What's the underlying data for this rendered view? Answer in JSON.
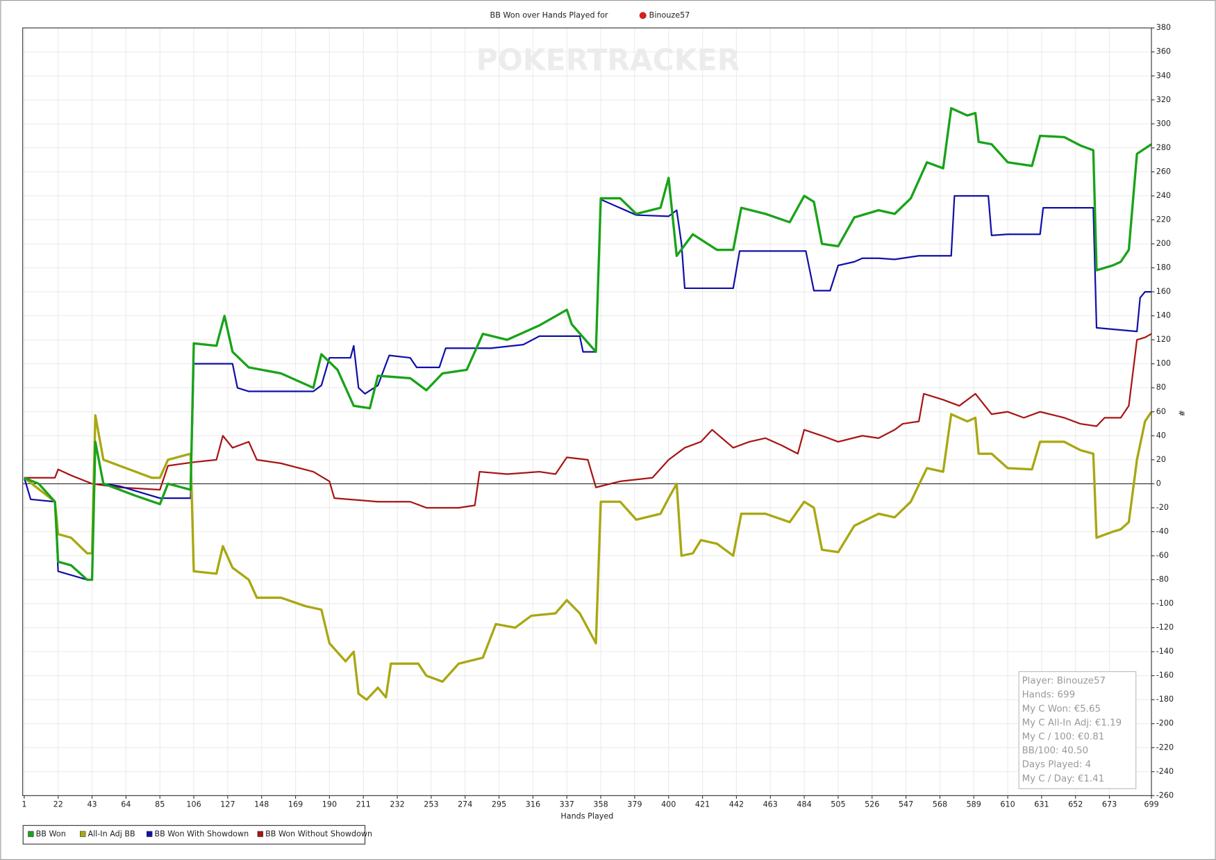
{
  "chart_data": {
    "type": "line",
    "title": "BB Won over Hands Played for",
    "player": "Binouze57",
    "watermark": "POKERTRACKER",
    "xlabel": "Hands Played",
    "ylabel": "#",
    "xlim": [
      1,
      699
    ],
    "ylim": [
      -260,
      380
    ],
    "xticks": [
      1,
      22,
      43,
      64,
      85,
      106,
      127,
      148,
      169,
      190,
      211,
      232,
      253,
      274,
      295,
      316,
      337,
      358,
      379,
      400,
      421,
      442,
      463,
      484,
      505,
      526,
      547,
      568,
      589,
      610,
      631,
      652,
      673,
      699
    ],
    "yticks": [
      -260,
      -240,
      -220,
      -200,
      -180,
      -160,
      -140,
      -120,
      -100,
      -80,
      -60,
      -40,
      -20,
      0,
      20,
      40,
      60,
      80,
      100,
      120,
      140,
      160,
      180,
      200,
      220,
      240,
      260,
      280,
      300,
      320,
      340,
      360,
      380
    ],
    "grid": true,
    "series": [
      {
        "name": "BB Won",
        "color": "#19a319",
        "x": [
          1,
          10,
          20,
          22,
          30,
          40,
          43,
          45,
          50,
          60,
          70,
          85,
          90,
          104,
          106,
          120,
          125,
          130,
          140,
          160,
          180,
          185,
          195,
          205,
          215,
          220,
          240,
          250,
          260,
          275,
          285,
          300,
          320,
          337,
          340,
          355,
          358,
          370,
          380,
          395,
          400,
          405,
          415,
          430,
          440,
          445,
          460,
          475,
          484,
          490,
          495,
          505,
          515,
          530,
          540,
          550,
          560,
          570,
          575,
          585,
          590,
          592,
          600,
          610,
          625,
          630,
          645,
          655,
          663,
          665,
          675,
          680,
          685,
          690,
          699
        ],
        "values": [
          5,
          0,
          -15,
          -65,
          -68,
          -80,
          -80,
          35,
          0,
          -5,
          -10,
          -17,
          0,
          -5,
          117,
          115,
          140,
          110,
          97,
          92,
          80,
          108,
          95,
          65,
          63,
          90,
          88,
          78,
          92,
          95,
          125,
          120,
          132,
          145,
          133,
          110,
          238,
          238,
          225,
          230,
          255,
          190,
          208,
          195,
          195,
          230,
          225,
          218,
          240,
          235,
          200,
          198,
          222,
          228,
          225,
          238,
          268,
          263,
          313,
          307,
          309,
          285,
          283,
          268,
          265,
          290,
          289,
          282,
          278,
          178,
          182,
          185,
          195,
          275,
          283
        ]
      },
      {
        "name": "All-In Adj BB",
        "color": "#a8a812",
        "x": [
          1,
          20,
          22,
          30,
          40,
          43,
          45,
          50,
          60,
          70,
          80,
          85,
          90,
          104,
          106,
          120,
          124,
          130,
          140,
          145,
          160,
          175,
          185,
          190,
          200,
          205,
          208,
          213,
          220,
          225,
          228,
          245,
          250,
          260,
          270,
          285,
          293,
          305,
          315,
          330,
          337,
          345,
          355,
          358,
          370,
          380,
          395,
          400,
          405,
          408,
          415,
          420,
          430,
          440,
          445,
          460,
          475,
          484,
          490,
          495,
          505,
          515,
          530,
          540,
          550,
          560,
          570,
          575,
          585,
          590,
          592,
          600,
          610,
          625,
          630,
          645,
          655,
          663,
          665,
          675,
          680,
          685,
          690,
          695,
          699
        ],
        "values": [
          5,
          -15,
          -42,
          -45,
          -58,
          -58,
          57,
          20,
          15,
          10,
          5,
          5,
          20,
          25,
          -73,
          -75,
          -52,
          -70,
          -80,
          -95,
          -95,
          -102,
          -105,
          -133,
          -148,
          -140,
          -175,
          -180,
          -170,
          -178,
          -150,
          -150,
          -160,
          -165,
          -150,
          -145,
          -117,
          -120,
          -110,
          -108,
          -97,
          -108,
          -133,
          -15,
          -15,
          -30,
          -25,
          -12,
          0,
          -60,
          -58,
          -47,
          -50,
          -60,
          -25,
          -25,
          -32,
          -15,
          -20,
          -55,
          -57,
          -35,
          -25,
          -28,
          -15,
          13,
          10,
          58,
          52,
          55,
          25,
          25,
          13,
          12,
          35,
          35,
          28,
          25,
          -45,
          -40,
          -38,
          -32,
          20,
          52,
          60
        ]
      },
      {
        "name": "BB Won With Showdown",
        "color": "#1010a8",
        "x": [
          1,
          5,
          20,
          22,
          40,
          43,
          45,
          50,
          60,
          85,
          104,
          106,
          130,
          133,
          140,
          180,
          185,
          190,
          203,
          205,
          208,
          212,
          220,
          227,
          240,
          244,
          258,
          262,
          290,
          310,
          320,
          345,
          347,
          355,
          358,
          380,
          400,
          405,
          408,
          410,
          440,
          444,
          485,
          490,
          500,
          505,
          515,
          520,
          530,
          540,
          555,
          575,
          577,
          598,
          600,
          610,
          630,
          632,
          663,
          665,
          690,
          692,
          695,
          699
        ],
        "values": [
          5,
          -13,
          -15,
          -73,
          -80,
          -80,
          35,
          0,
          -2,
          -12,
          -12,
          100,
          100,
          80,
          77,
          77,
          82,
          105,
          105,
          115,
          80,
          75,
          82,
          107,
          105,
          97,
          97,
          113,
          113,
          116,
          123,
          123,
          110,
          110,
          237,
          224,
          223,
          228,
          200,
          163,
          163,
          194,
          194,
          161,
          161,
          182,
          185,
          188,
          188,
          187,
          190,
          190,
          240,
          240,
          207,
          208,
          208,
          230,
          230,
          130,
          127,
          155,
          160,
          160
        ]
      },
      {
        "name": "BB Won Without Showdown",
        "color": "#a81414",
        "x": [
          1,
          20,
          22,
          30,
          43,
          60,
          85,
          90,
          106,
          120,
          124,
          130,
          140,
          145,
          160,
          180,
          190,
          193,
          220,
          240,
          250,
          270,
          280,
          283,
          300,
          320,
          330,
          337,
          350,
          355,
          370,
          390,
          400,
          410,
          420,
          427,
          440,
          450,
          460,
          470,
          480,
          484,
          495,
          505,
          520,
          530,
          540,
          545,
          555,
          558,
          570,
          580,
          590,
          600,
          610,
          620,
          630,
          645,
          655,
          665,
          670,
          680,
          685,
          690,
          695,
          699
        ],
        "values": [
          5,
          5,
          12,
          7,
          0,
          -3,
          -5,
          15,
          18,
          20,
          40,
          30,
          35,
          20,
          17,
          10,
          2,
          -12,
          -15,
          -15,
          -20,
          -20,
          -18,
          10,
          8,
          10,
          8,
          22,
          20,
          -3,
          2,
          5,
          20,
          30,
          35,
          45,
          30,
          35,
          38,
          32,
          25,
          45,
          40,
          35,
          40,
          38,
          45,
          50,
          52,
          75,
          70,
          65,
          75,
          58,
          60,
          55,
          60,
          55,
          50,
          48,
          55,
          55,
          65,
          120,
          122,
          125
        ]
      }
    ],
    "stats": [
      "Player: Binouze57",
      "Hands: 699",
      "My C Won: €5.65",
      "My C All-In Adj: €1.19",
      "My C / 100: €0.81",
      "BB/100: 40.50",
      "Days Played: 4",
      "My C / Day: €1.41"
    ]
  }
}
